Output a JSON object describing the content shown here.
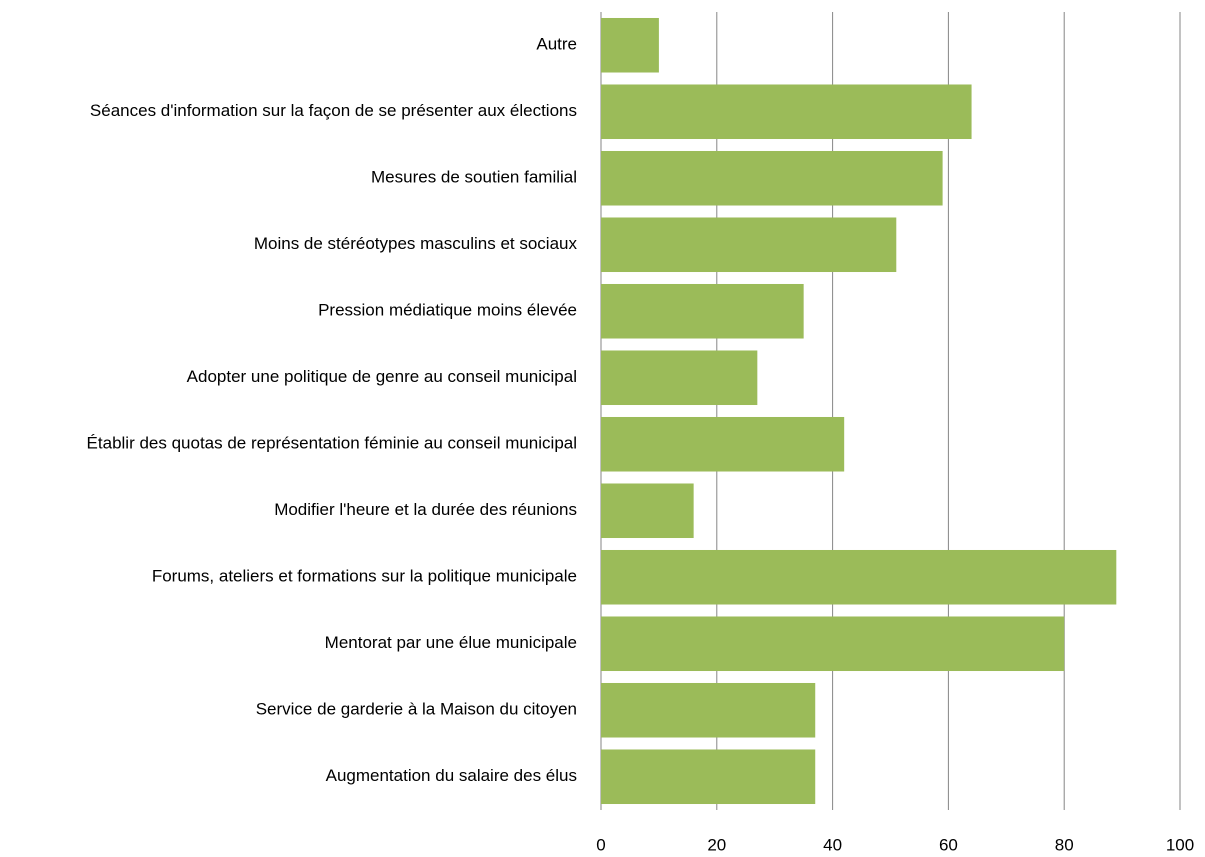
{
  "chart_data": {
    "type": "bar",
    "orientation": "horizontal",
    "categories": [
      "Autre",
      "Séances d'information sur la façon de se présenter aux élections",
      "Mesures de soutien familial",
      "Moins de stéréotypes masculins et sociaux",
      "Pression médiatique moins élevée",
      "Adopter une politique de genre au conseil municipal",
      "Établir des quotas de représentation féminie au conseil municipal",
      "Modifier l'heure et la durée des réunions",
      "Forums, ateliers et formations sur la politique municipale",
      "Mentorat par une élue municipale",
      "Service de garderie à la Maison du citoyen",
      "Augmentation du salaire des élus"
    ],
    "values": [
      10,
      64,
      59,
      51,
      35,
      27,
      42,
      16,
      89,
      80,
      37,
      37
    ],
    "color": "#9bbb59",
    "xlim": [
      0,
      100
    ],
    "xticks": [
      0,
      20,
      40,
      60,
      80,
      100
    ],
    "grid": true
  }
}
